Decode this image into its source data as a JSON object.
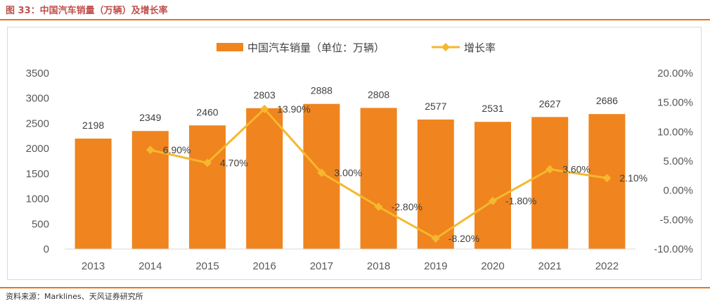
{
  "header": {
    "title": "图 33：中国汽车销量（万辆）及增长率"
  },
  "footer": {
    "source": "资料来源：Marklines、天风证券研究所"
  },
  "colors": {
    "bar": "#f0841e",
    "line": "#f5b82e",
    "rule": "#e67817",
    "title": "#c0504d"
  },
  "chart_data": {
    "type": "bar",
    "categories": [
      "2013",
      "2014",
      "2015",
      "2016",
      "2017",
      "2018",
      "2019",
      "2020",
      "2021",
      "2022"
    ],
    "series": [
      {
        "name": "中国汽车销量（单位：万辆）",
        "type": "bar",
        "axis": "left",
        "values": [
          2198,
          2349,
          2460,
          2803,
          2888,
          2808,
          2577,
          2531,
          2627,
          2686
        ],
        "labels": [
          "2198",
          "2349",
          "2460",
          "2803",
          "2888",
          "2808",
          "2577",
          "2531",
          "2627",
          "2686"
        ]
      },
      {
        "name": "增长率",
        "type": "line",
        "axis": "right",
        "values": [
          null,
          6.9,
          4.7,
          13.9,
          3.0,
          -2.8,
          -8.2,
          -1.8,
          3.6,
          2.1
        ],
        "labels": [
          "",
          "6.90%",
          "4.70%",
          "13.90%",
          "3.00%",
          "-2.80%",
          "-8.20%",
          "-1.80%",
          "3.60%",
          "2.10%"
        ]
      }
    ],
    "y_left": {
      "ylim": [
        0,
        3500
      ],
      "ticks": [
        0,
        500,
        1000,
        1500,
        2000,
        2500,
        3000,
        3500
      ],
      "tick_labels": [
        "0",
        "500",
        "1000",
        "1500",
        "2000",
        "2500",
        "3000",
        "3500"
      ]
    },
    "y_right": {
      "ylim": [
        -10,
        20
      ],
      "ticks": [
        -10,
        -5,
        0,
        5,
        10,
        15,
        20
      ],
      "tick_labels": [
        "-10.00%",
        "-5.00%",
        "0.00%",
        "5.00%",
        "10.00%",
        "15.00%",
        "20.00%"
      ]
    },
    "legend": {
      "position": "top-center"
    },
    "grid": false
  }
}
